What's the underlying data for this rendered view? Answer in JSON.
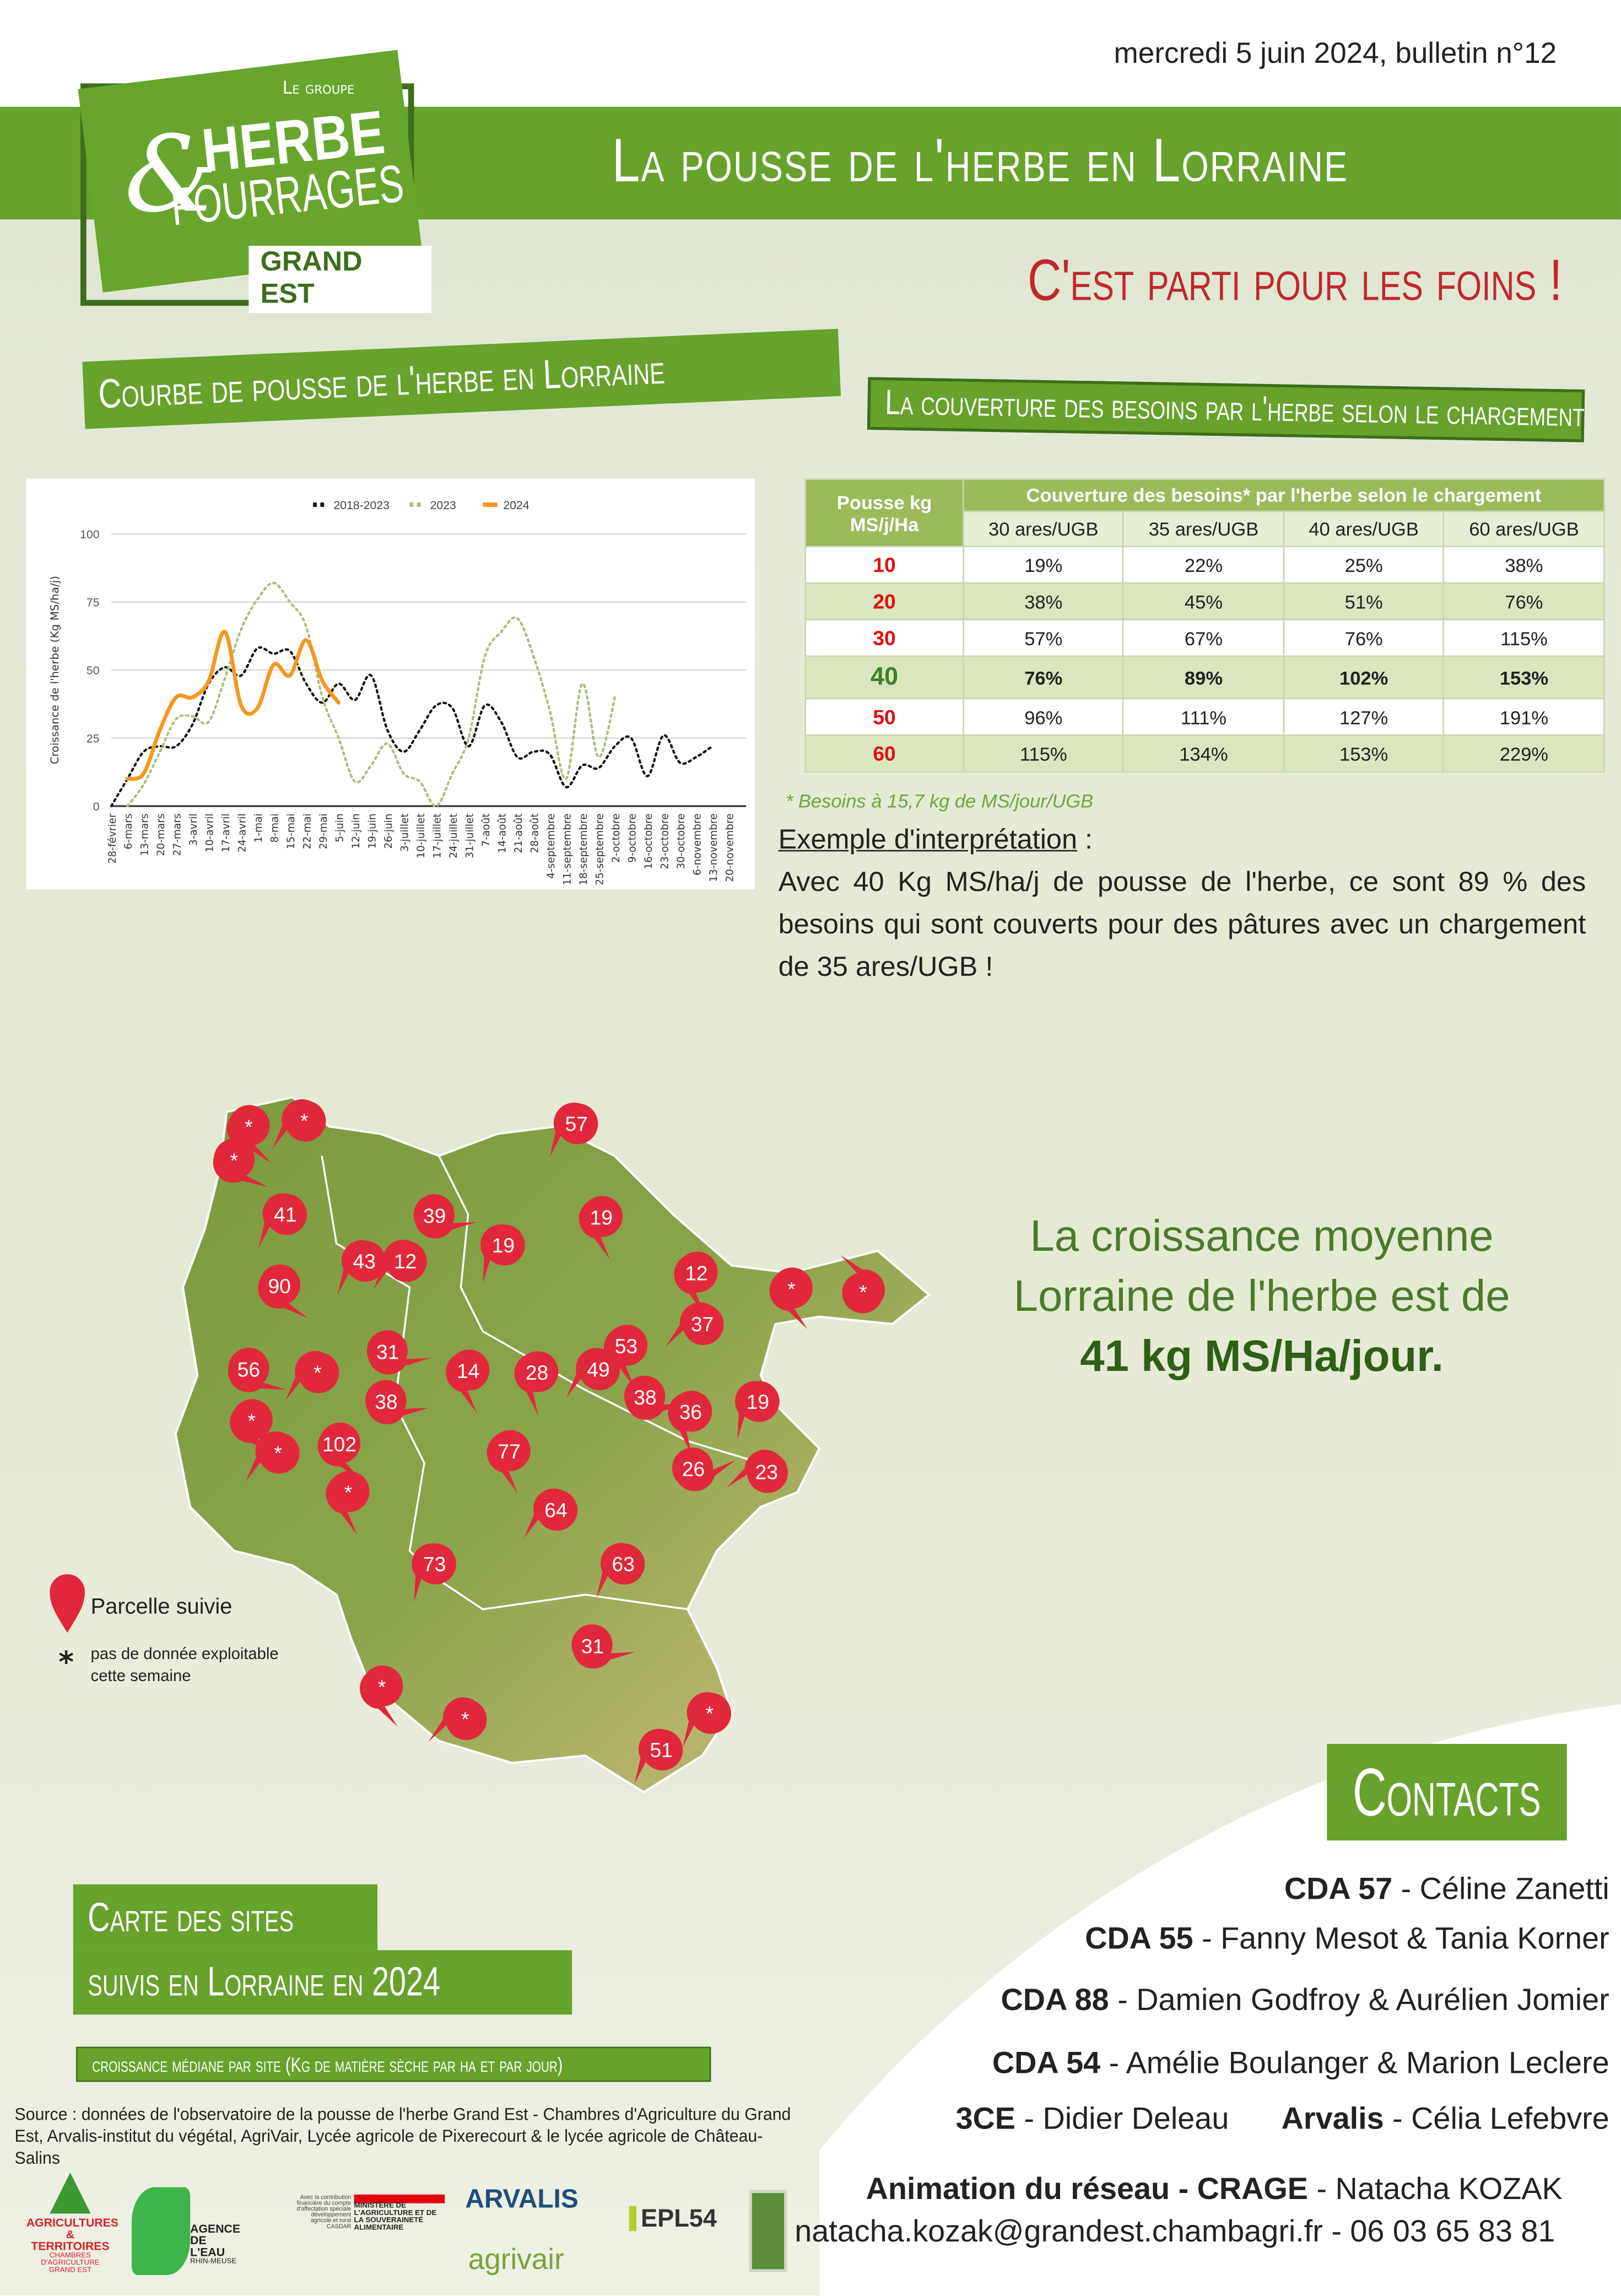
{
  "header": {
    "date": "mercredi 5 juin 2024, bulletin n°12",
    "title": "La pousse de l'herbe en Lorraine",
    "slogan": "C'est parti pour les foins !"
  },
  "logo": {
    "line1": "Le groupe",
    "line2": "HERBE",
    "line3": "&",
    "line4": "FOURRAGES",
    "line5": "GRAND EST"
  },
  "sections": {
    "courbe": "Courbe de pousse de l'herbe en Lorraine",
    "couverture": "La couverture des besoins par l'herbe selon le chargement"
  },
  "chart_data": {
    "type": "line",
    "ylabel": "Croissance de l'herbe (Kg MS/ha/j)",
    "ylim": [
      0,
      100
    ],
    "yticks": [
      0,
      25,
      50,
      75,
      100
    ],
    "grid": true,
    "legend": "top-center",
    "categories": [
      "28-février",
      "6-mars",
      "13-mars",
      "20-mars",
      "27-mars",
      "3-avril",
      "10-avril",
      "17-avril",
      "24-avril",
      "1-mai",
      "8-mai",
      "15-mai",
      "22-mai",
      "29-mai",
      "5-juin",
      "12-juin",
      "19-juin",
      "26-juin",
      "3-juillet",
      "10-juillet",
      "17-juillet",
      "24-juillet",
      "31-juillet",
      "7-août",
      "14-août",
      "21-août",
      "28-août",
      "4-septembre",
      "11-septembre",
      "18-septembre",
      "25-septembre",
      "2-octobre",
      "9-octobre",
      "16-octobre",
      "23-octobre",
      "30-octobre",
      "6-novembre",
      "13-novembre",
      "20-novembre"
    ],
    "series": [
      {
        "name": "2018-2023",
        "color": "#111111",
        "style": "dotted",
        "values": [
          0,
          10,
          20,
          22,
          22,
          30,
          45,
          51,
          48,
          58,
          56,
          57,
          45,
          38,
          45,
          39,
          48,
          28,
          20,
          28,
          37,
          36,
          22,
          37,
          31,
          18,
          20,
          19,
          7,
          15,
          14,
          22,
          25,
          11,
          26,
          16,
          18,
          22,
          null
        ]
      },
      {
        "name": "2023",
        "color": "#a8c07a",
        "style": "dotted",
        "values": [
          null,
          0,
          8,
          20,
          32,
          33,
          31,
          47,
          65,
          76,
          82,
          75,
          66,
          40,
          25,
          9,
          15,
          23,
          12,
          9,
          0,
          12,
          25,
          55,
          64,
          69,
          55,
          35,
          10,
          45,
          18,
          40,
          null,
          null,
          null,
          null,
          null,
          null,
          null
        ]
      },
      {
        "name": "2024",
        "color": "#f7971e",
        "style": "solid",
        "values": [
          null,
          10,
          12,
          28,
          40,
          40,
          46,
          64,
          37,
          36,
          52,
          48,
          61,
          46,
          38,
          null,
          null,
          null,
          null,
          null,
          null,
          null,
          null,
          null,
          null,
          null,
          null,
          null,
          null,
          null,
          null,
          null,
          null,
          null,
          null,
          null,
          null,
          null,
          null
        ]
      }
    ]
  },
  "table": {
    "header_left": [
      "Pousse kg",
      "MS/j/Ha"
    ],
    "header_top": "Couverture des besoins* par l'herbe selon le chargement",
    "columns": [
      "30 ares/UGB",
      "35 ares/UGB",
      "40 ares/UGB",
      "60 ares/UGB"
    ],
    "rows": [
      {
        "pousse": "10",
        "values": [
          "19%",
          "22%",
          "25%",
          "38%"
        ]
      },
      {
        "pousse": "20",
        "values": [
          "38%",
          "45%",
          "51%",
          "76%"
        ]
      },
      {
        "pousse": "30",
        "values": [
          "57%",
          "67%",
          "76%",
          "115%"
        ]
      },
      {
        "pousse": "40",
        "values": [
          "76%",
          "89%",
          "102%",
          "153%"
        ]
      },
      {
        "pousse": "50",
        "values": [
          "96%",
          "111%",
          "127%",
          "191%"
        ]
      },
      {
        "pousse": "60",
        "values": [
          "115%",
          "134%",
          "153%",
          "229%"
        ]
      }
    ],
    "note": "* Besoins à 15,7 kg de MS/jour/UGB"
  },
  "example": {
    "title": "Exemple d'interprétation",
    "colon": " :",
    "text": "Avec 40 Kg MS/ha/j de pousse de l'herbe, ce sont 89 % des besoins qui sont couverts pour des pâtures avec un chargement de 35 ares/UGB !"
  },
  "average": {
    "text": "La croissance moyenne Lorraine de l'herbe est de",
    "value": "41 kg MS/Ha/jour."
  },
  "map": {
    "pin_color": "#e0283a",
    "markers": [
      "*",
      "*",
      "*",
      "41",
      "39",
      "19",
      "57",
      "19",
      "43",
      "12",
      "90",
      "12",
      "*",
      "*",
      "37",
      "31",
      "53",
      "56",
      "*",
      "14",
      "28",
      "49",
      "38",
      "36",
      "19",
      "38",
      "*",
      "*",
      "102",
      "26",
      "23",
      "77",
      "*",
      "64",
      "63",
      "73",
      "31",
      "*",
      "*",
      "51",
      "*"
    ],
    "legend": {
      "pin": "Parcelle suivie",
      "star_symbol": "*",
      "star": "pas de donnée exploitable cette semaine"
    },
    "title_line1": "Carte des sites",
    "title_line2": "suivis en Lorraine en 2024",
    "subtitle": "croissance médiane par site (Kg de matière sèche par ha et par jour)"
  },
  "source": "Source : données de l'observatoire de la pousse de l'herbe Grand Est - Chambres d'Agriculture du Grand Est, Arvalis-institut du végétal, AgriVair, Lycée agricole de Pixerecourt & le lycée agricole de Château-Salins",
  "contacts": {
    "title": "Contacts",
    "items": [
      {
        "org": "CDA 57",
        "names": " - Céline Zanetti"
      },
      {
        "org": "CDA 55",
        "names": " - Fanny Mesot & Tania Korner"
      },
      {
        "org": "CDA 88",
        "names": " - Damien Godfroy & Aurélien Jomier"
      },
      {
        "org": "CDA 54",
        "names": " - Amélie Boulanger & Marion Leclere"
      },
      {
        "org": "3CE",
        "names": " - Didier Deleau"
      },
      {
        "org": "Arvalis",
        "names": " - Célia Lefebvre"
      }
    ],
    "animation": {
      "org": "Animation du réseau - CRAGE",
      "names": " - Natacha KOZAK",
      "contact": "natacha.kozak@grandest.chambagri.fr - 06 03 65 83 81"
    }
  },
  "partners": {
    "chambres": [
      "AGRICULTURES",
      "& TERRITOIRES",
      "CHAMBRES D'AGRICULTURE",
      "GRAND EST"
    ],
    "agence": [
      "AGENCE",
      "DE L'EAU",
      "RHIN-MEUSE"
    ],
    "ministere": [
      "Avec la contribution financière du compte d'affectation spéciale développement agricole et rural CASDAR",
      "MINISTÈRE DE L'AGRICULTURE ET DE LA SOUVERAINETÉ ALIMENTAIRE"
    ],
    "arvalis": "ARVALIS",
    "agrivair": "agrivair",
    "epl": "EPL54"
  }
}
